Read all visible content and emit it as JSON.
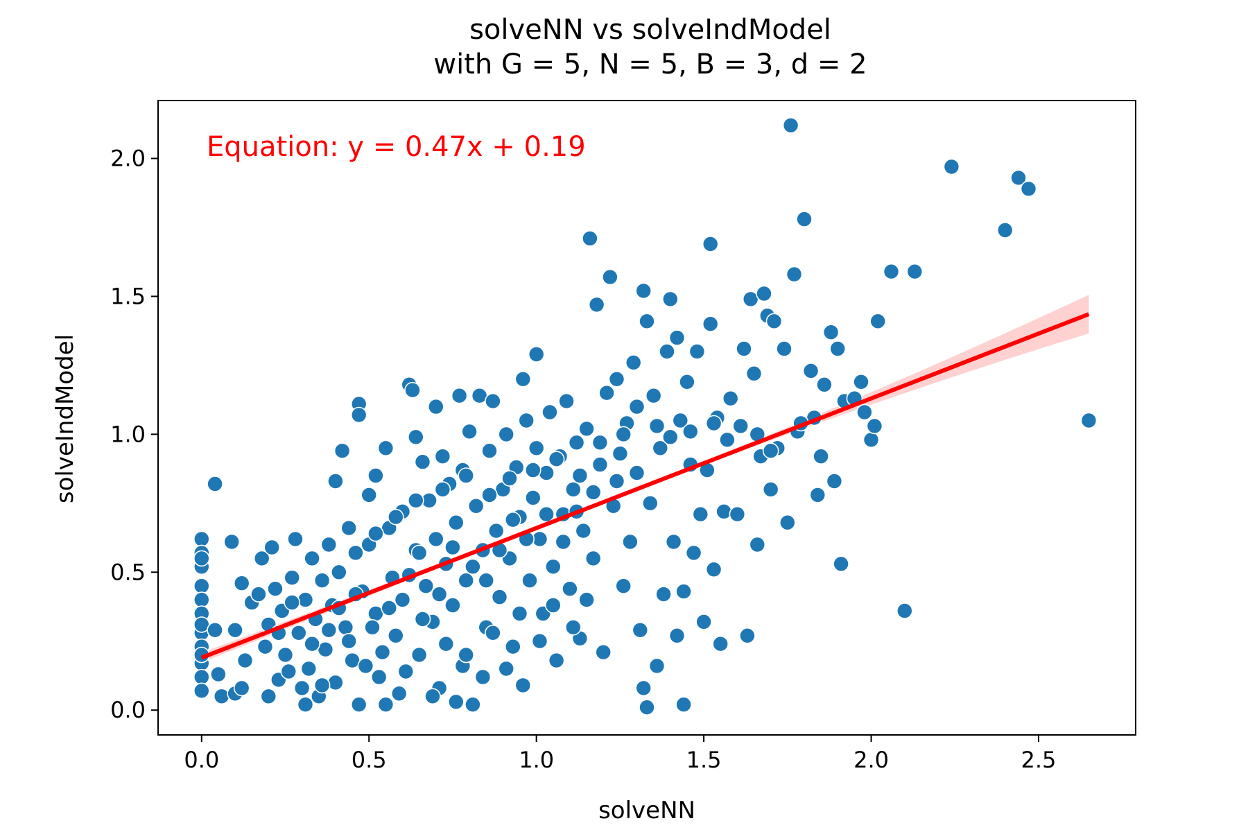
{
  "chart_data": {
    "type": "scatter",
    "title": "solveNN vs solveIndModel",
    "subtitle": "with G = 5, N = 5, B = 3, d = 2",
    "xlabel": "solveNN",
    "ylabel": "solveIndModel",
    "xlim": [
      -0.13,
      2.79
    ],
    "ylim": [
      -0.09,
      2.21
    ],
    "xticks": [
      0.0,
      0.5,
      1.0,
      1.5,
      2.0,
      2.5
    ],
    "xtick_labels": [
      "0.0",
      "0.5",
      "1.0",
      "1.5",
      "2.0",
      "2.5"
    ],
    "yticks": [
      0.0,
      0.5,
      1.0,
      1.5,
      2.0
    ],
    "ytick_labels": [
      "0.0",
      "0.5",
      "1.0",
      "1.5",
      "2.0"
    ],
    "grid": false,
    "point_color": "#1f77b4",
    "fit_color": "#ff0000",
    "band_color": "#ffb3b3",
    "annotation": "Equation: y = 0.47x + 0.19",
    "fit": {
      "slope": 0.47,
      "intercept": 0.19,
      "x_range": [
        0.0,
        2.65
      ]
    },
    "confidence_band": {
      "halfwidth_at_x0": 0.018,
      "halfwidth_at_center": 0.006,
      "halfwidth_at_xmax": 0.07
    },
    "points": [
      [
        0.0,
        0.62
      ],
      [
        0.0,
        0.57
      ],
      [
        0.0,
        0.52
      ],
      [
        0.0,
        0.45
      ],
      [
        0.0,
        0.4
      ],
      [
        0.0,
        0.35
      ],
      [
        0.0,
        0.28
      ],
      [
        0.0,
        0.23
      ],
      [
        0.0,
        0.17
      ],
      [
        0.0,
        0.12
      ],
      [
        0.0,
        0.07
      ],
      [
        0.0,
        0.55
      ],
      [
        0.0,
        0.31
      ],
      [
        0.0,
        0.2
      ],
      [
        0.04,
        0.82
      ],
      [
        0.04,
        0.29
      ],
      [
        0.05,
        0.13
      ],
      [
        0.06,
        0.05
      ],
      [
        0.09,
        0.61
      ],
      [
        0.1,
        0.06
      ],
      [
        0.1,
        0.29
      ],
      [
        0.12,
        0.08
      ],
      [
        0.12,
        0.46
      ],
      [
        0.13,
        0.18
      ],
      [
        0.15,
        0.39
      ],
      [
        0.17,
        0.42
      ],
      [
        0.18,
        0.55
      ],
      [
        0.19,
        0.23
      ],
      [
        0.2,
        0.31
      ],
      [
        0.21,
        0.59
      ],
      [
        0.22,
        0.44
      ],
      [
        0.23,
        0.11
      ],
      [
        0.24,
        0.36
      ],
      [
        0.25,
        0.2
      ],
      [
        0.27,
        0.48
      ],
      [
        0.28,
        0.62
      ],
      [
        0.29,
        0.28
      ],
      [
        0.3,
        0.08
      ],
      [
        0.31,
        0.4
      ],
      [
        0.32,
        0.15
      ],
      [
        0.33,
        0.55
      ],
      [
        0.34,
        0.33
      ],
      [
        0.35,
        0.05
      ],
      [
        0.36,
        0.47
      ],
      [
        0.37,
        0.22
      ],
      [
        0.38,
        0.6
      ],
      [
        0.39,
        0.38
      ],
      [
        0.4,
        0.1
      ],
      [
        0.4,
        0.83
      ],
      [
        0.41,
        0.5
      ],
      [
        0.42,
        0.94
      ],
      [
        0.43,
        0.3
      ],
      [
        0.44,
        0.66
      ],
      [
        0.45,
        0.18
      ],
      [
        0.46,
        0.57
      ],
      [
        0.47,
        0.02
      ],
      [
        0.48,
        0.43
      ],
      [
        0.47,
        1.11
      ],
      [
        0.47,
        1.07
      ],
      [
        0.5,
        0.78
      ],
      [
        0.5,
        0.6
      ],
      [
        0.52,
        0.35
      ],
      [
        0.52,
        0.85
      ],
      [
        0.53,
        0.12
      ],
      [
        0.55,
        0.95
      ],
      [
        0.55,
        0.02
      ],
      [
        0.56,
        0.66
      ],
      [
        0.57,
        0.48
      ],
      [
        0.58,
        0.27
      ],
      [
        0.6,
        0.72
      ],
      [
        0.6,
        0.4
      ],
      [
        0.62,
        1.18
      ],
      [
        0.63,
        1.16
      ],
      [
        0.64,
        0.99
      ],
      [
        0.64,
        0.58
      ],
      [
        0.65,
        0.2
      ],
      [
        0.66,
        0.9
      ],
      [
        0.67,
        0.45
      ],
      [
        0.68,
        0.76
      ],
      [
        0.69,
        0.32
      ],
      [
        0.7,
        1.1
      ],
      [
        0.7,
        0.62
      ],
      [
        0.71,
        0.08
      ],
      [
        0.72,
        0.92
      ],
      [
        0.73,
        0.53
      ],
      [
        0.74,
        0.82
      ],
      [
        0.75,
        0.38
      ],
      [
        0.76,
        0.68
      ],
      [
        0.77,
        1.14
      ],
      [
        0.78,
        0.16
      ],
      [
        0.78,
        0.87
      ],
      [
        0.79,
        0.47
      ],
      [
        0.8,
        1.01
      ],
      [
        0.81,
        0.02
      ],
      [
        0.82,
        0.74
      ],
      [
        0.83,
        1.14
      ],
      [
        0.84,
        0.58
      ],
      [
        0.85,
        0.3
      ],
      [
        0.86,
        0.94
      ],
      [
        0.87,
        1.12
      ],
      [
        0.88,
        0.65
      ],
      [
        0.89,
        0.41
      ],
      [
        0.9,
        0.8
      ],
      [
        0.91,
        1.0
      ],
      [
        0.92,
        0.55
      ],
      [
        0.93,
        0.23
      ],
      [
        0.94,
        0.88
      ],
      [
        0.95,
        0.7
      ],
      [
        0.96,
        1.2
      ],
      [
        0.96,
        0.09
      ],
      [
        0.97,
        1.05
      ],
      [
        0.98,
        0.47
      ],
      [
        0.99,
        0.77
      ],
      [
        1.0,
        1.29
      ],
      [
        1.0,
        0.95
      ],
      [
        1.01,
        0.62
      ],
      [
        1.02,
        0.35
      ],
      [
        1.03,
        0.86
      ],
      [
        1.04,
        1.08
      ],
      [
        1.05,
        0.52
      ],
      [
        1.06,
        0.18
      ],
      [
        1.07,
        0.92
      ],
      [
        1.08,
        0.71
      ],
      [
        1.09,
        1.12
      ],
      [
        1.1,
        0.44
      ],
      [
        1.11,
        0.8
      ],
      [
        1.12,
        0.97
      ],
      [
        1.13,
        0.26
      ],
      [
        1.14,
        0.65
      ],
      [
        1.15,
        1.02
      ],
      [
        1.16,
        1.71
      ],
      [
        1.17,
        0.55
      ],
      [
        1.18,
        1.47
      ],
      [
        1.19,
        0.89
      ],
      [
        1.2,
        0.21
      ],
      [
        1.21,
        1.15
      ],
      [
        1.22,
        1.57
      ],
      [
        1.23,
        0.74
      ],
      [
        1.24,
        1.2
      ],
      [
        1.25,
        0.93
      ],
      [
        1.26,
        0.45
      ],
      [
        1.27,
        1.04
      ],
      [
        1.28,
        0.61
      ],
      [
        1.29,
        1.26
      ],
      [
        1.3,
        0.86
      ],
      [
        1.31,
        0.29
      ],
      [
        1.32,
        1.52
      ],
      [
        1.32,
        0.08
      ],
      [
        1.33,
        0.01
      ],
      [
        1.33,
        1.41
      ],
      [
        1.34,
        0.75
      ],
      [
        1.35,
        1.14
      ],
      [
        1.36,
        0.16
      ],
      [
        1.37,
        0.95
      ],
      [
        1.38,
        0.42
      ],
      [
        1.39,
        1.3
      ],
      [
        1.4,
        1.49
      ],
      [
        1.41,
        0.61
      ],
      [
        1.42,
        1.35
      ],
      [
        1.42,
        0.27
      ],
      [
        1.43,
        1.05
      ],
      [
        1.44,
        0.02
      ],
      [
        1.44,
        0.43
      ],
      [
        1.45,
        1.19
      ],
      [
        1.46,
        0.89
      ],
      [
        1.47,
        0.57
      ],
      [
        1.48,
        1.3
      ],
      [
        1.49,
        0.71
      ],
      [
        1.5,
        0.32
      ],
      [
        1.51,
        0.87
      ],
      [
        1.52,
        1.69
      ],
      [
        1.52,
        1.4
      ],
      [
        1.53,
        0.51
      ],
      [
        1.54,
        1.06
      ],
      [
        1.55,
        0.24
      ],
      [
        1.56,
        0.72
      ],
      [
        1.58,
        1.13
      ],
      [
        1.6,
        0.71
      ],
      [
        1.62,
        1.31
      ],
      [
        1.63,
        0.27
      ],
      [
        1.64,
        1.49
      ],
      [
        1.65,
        1.22
      ],
      [
        1.66,
        0.6
      ],
      [
        1.67,
        0.92
      ],
      [
        1.68,
        1.51
      ],
      [
        1.69,
        1.43
      ],
      [
        1.7,
        0.8
      ],
      [
        1.71,
        1.41
      ],
      [
        1.72,
        0.95
      ],
      [
        1.74,
        1.31
      ],
      [
        1.75,
        0.68
      ],
      [
        1.76,
        2.12
      ],
      [
        1.77,
        1.58
      ],
      [
        1.78,
        1.01
      ],
      [
        1.8,
        1.78
      ],
      [
        1.82,
        1.23
      ],
      [
        1.83,
        1.06
      ],
      [
        1.84,
        0.78
      ],
      [
        1.85,
        0.92
      ],
      [
        1.86,
        1.18
      ],
      [
        1.88,
        1.37
      ],
      [
        1.89,
        0.83
      ],
      [
        1.9,
        1.31
      ],
      [
        1.91,
        0.53
      ],
      [
        1.92,
        1.12
      ],
      [
        1.95,
        1.13
      ],
      [
        1.97,
        1.19
      ],
      [
        1.98,
        1.08
      ],
      [
        2.0,
        0.98
      ],
      [
        2.01,
        1.03
      ],
      [
        2.02,
        1.41
      ],
      [
        2.06,
        1.59
      ],
      [
        2.1,
        0.36
      ],
      [
        2.13,
        1.59
      ],
      [
        2.24,
        1.97
      ],
      [
        2.4,
        1.74
      ],
      [
        2.44,
        1.93
      ],
      [
        2.47,
        1.89
      ],
      [
        2.65,
        1.05
      ],
      [
        0.2,
        0.05
      ],
      [
        0.26,
        0.14
      ],
      [
        0.31,
        0.02
      ],
      [
        0.36,
        0.09
      ],
      [
        0.44,
        0.25
      ],
      [
        0.49,
        0.16
      ],
      [
        0.54,
        0.21
      ],
      [
        0.59,
        0.06
      ],
      [
        0.61,
        0.14
      ],
      [
        0.66,
        0.33
      ],
      [
        0.69,
        0.05
      ],
      [
        0.73,
        0.24
      ],
      [
        0.76,
        0.03
      ],
      [
        0.79,
        0.2
      ],
      [
        0.84,
        0.12
      ],
      [
        0.87,
        0.28
      ],
      [
        0.91,
        0.15
      ],
      [
        0.95,
        0.35
      ],
      [
        1.01,
        0.25
      ],
      [
        1.05,
        0.38
      ],
      [
        1.11,
        0.3
      ],
      [
        1.15,
        0.4
      ],
      [
        0.23,
        0.28
      ],
      [
        0.27,
        0.39
      ],
      [
        0.33,
        0.24
      ],
      [
        0.38,
        0.29
      ],
      [
        0.41,
        0.37
      ],
      [
        0.46,
        0.42
      ],
      [
        0.51,
        0.3
      ],
      [
        0.56,
        0.37
      ],
      [
        0.62,
        0.49
      ],
      [
        0.65,
        0.57
      ],
      [
        0.71,
        0.42
      ],
      [
        0.75,
        0.59
      ],
      [
        0.81,
        0.52
      ],
      [
        0.85,
        0.47
      ],
      [
        0.89,
        0.58
      ],
      [
        0.93,
        0.69
      ],
      [
        0.97,
        0.62
      ],
      [
        1.03,
        0.71
      ],
      [
        1.08,
        0.61
      ],
      [
        1.12,
        0.72
      ],
      [
        1.17,
        0.79
      ],
      [
        1.24,
        0.83
      ],
      [
        0.52,
        0.64
      ],
      [
        0.58,
        0.7
      ],
      [
        0.64,
        0.76
      ],
      [
        0.72,
        0.8
      ],
      [
        0.79,
        0.85
      ],
      [
        0.86,
        0.78
      ],
      [
        0.92,
        0.84
      ],
      [
        0.99,
        0.87
      ],
      [
        1.06,
        0.91
      ],
      [
        1.13,
        0.85
      ],
      [
        1.19,
        0.97
      ],
      [
        1.26,
        1.0
      ],
      [
        1.3,
        1.1
      ],
      [
        1.36,
        1.03
      ],
      [
        1.4,
        0.99
      ],
      [
        1.46,
        1.01
      ],
      [
        1.53,
        1.04
      ],
      [
        1.57,
        0.98
      ],
      [
        1.61,
        1.03
      ],
      [
        1.66,
        1.0
      ],
      [
        1.7,
        0.94
      ],
      [
        1.79,
        1.04
      ]
    ]
  }
}
